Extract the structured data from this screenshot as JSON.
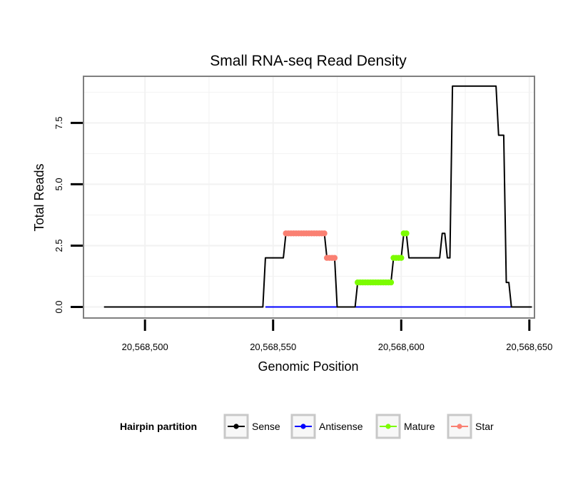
{
  "chart_data": {
    "type": "line",
    "title": "Small RNA-seq Read Density",
    "xlabel": "Genomic Position",
    "ylabel": "Total Reads",
    "xlim": [
      20568476,
      20568652
    ],
    "ylim": [
      -0.45,
      9.4
    ],
    "x_ticks": [
      20568500,
      20568550,
      20568600,
      20568650
    ],
    "x_tick_labels": [
      "20,568,500",
      "20,568,550",
      "20,568,600",
      "20,568,650"
    ],
    "y_ticks": [
      0,
      2.5,
      5,
      7.5
    ],
    "y_tick_labels": [
      "0.0",
      "2.5",
      "5.0",
      "7.5"
    ],
    "grid": true,
    "legend": {
      "title": "Hairpin partition",
      "position": "bottom",
      "entries": [
        {
          "label": "Sense",
          "color": "#000000"
        },
        {
          "label": "Antisense",
          "color": "#0000ff"
        },
        {
          "label": "Mature",
          "color": "#7cfc00"
        },
        {
          "label": "Star",
          "color": "#fa8072"
        }
      ]
    },
    "series": [
      {
        "name": "Sense",
        "color": "#000000",
        "points": [
          [
            20568484,
            0
          ],
          [
            20568546,
            0
          ],
          [
            20568547,
            2
          ],
          [
            20568554,
            2
          ],
          [
            20568555,
            3
          ],
          [
            20568570,
            3
          ],
          [
            20568571,
            2
          ],
          [
            20568574,
            2
          ],
          [
            20568575,
            0
          ],
          [
            20568582,
            0
          ],
          [
            20568583,
            1
          ],
          [
            20568596,
            1
          ],
          [
            20568597,
            2
          ],
          [
            20568600,
            2
          ],
          [
            20568601,
            3
          ],
          [
            20568602,
            3
          ],
          [
            20568603,
            2
          ],
          [
            20568615,
            2
          ],
          [
            20568616,
            3
          ],
          [
            20568617,
            3
          ],
          [
            20568618,
            2
          ],
          [
            20568619,
            2
          ],
          [
            20568620,
            9
          ],
          [
            20568637,
            9
          ],
          [
            20568638,
            7
          ],
          [
            20568640,
            7
          ],
          [
            20568641,
            1
          ],
          [
            20568642,
            1
          ],
          [
            20568643,
            0
          ],
          [
            20568651,
            0
          ]
        ]
      },
      {
        "name": "Antisense",
        "color": "#0000ff",
        "points": [
          [
            20568547,
            0
          ],
          [
            20568643,
            0
          ]
        ]
      },
      {
        "name": "Mature",
        "color": "#7cfc00",
        "points": [
          [
            20568583,
            1
          ],
          [
            20568584,
            1
          ],
          [
            20568585,
            1
          ],
          [
            20568586,
            1
          ],
          [
            20568587,
            1
          ],
          [
            20568588,
            1
          ],
          [
            20568589,
            1
          ],
          [
            20568590,
            1
          ],
          [
            20568591,
            1
          ],
          [
            20568592,
            1
          ],
          [
            20568593,
            1
          ],
          [
            20568594,
            1
          ],
          [
            20568595,
            1
          ],
          [
            20568596,
            1
          ],
          [
            20568597,
            2
          ],
          [
            20568598,
            2
          ],
          [
            20568599,
            2
          ],
          [
            20568600,
            2
          ],
          [
            20568601,
            3
          ],
          [
            20568602,
            3
          ]
        ]
      },
      {
        "name": "Star",
        "color": "#fa8072",
        "points": [
          [
            20568555,
            3
          ],
          [
            20568556,
            3
          ],
          [
            20568557,
            3
          ],
          [
            20568558,
            3
          ],
          [
            20568559,
            3
          ],
          [
            20568560,
            3
          ],
          [
            20568561,
            3
          ],
          [
            20568562,
            3
          ],
          [
            20568563,
            3
          ],
          [
            20568564,
            3
          ],
          [
            20568565,
            3
          ],
          [
            20568566,
            3
          ],
          [
            20568567,
            3
          ],
          [
            20568568,
            3
          ],
          [
            20568569,
            3
          ],
          [
            20568570,
            3
          ],
          [
            20568571,
            2
          ],
          [
            20568572,
            2
          ],
          [
            20568573,
            2
          ],
          [
            20568574,
            2
          ]
        ]
      }
    ]
  }
}
